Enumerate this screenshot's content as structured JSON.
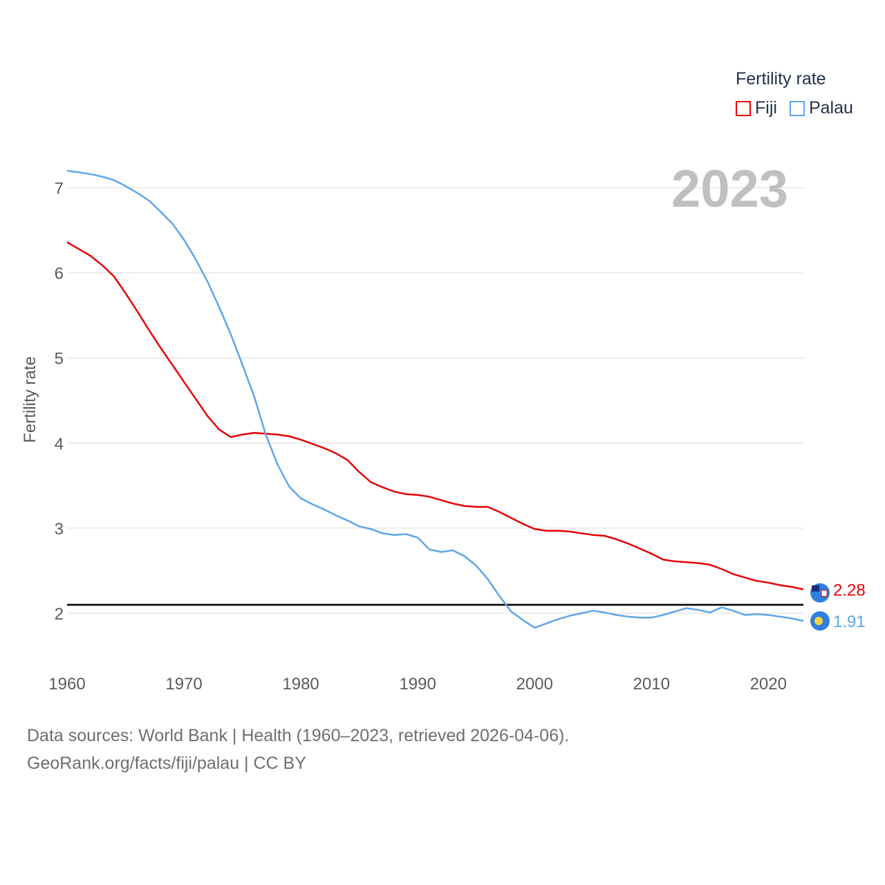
{
  "legend": {
    "title": "Fertility rate",
    "items": [
      {
        "label": "Fiji",
        "color": "#e60000"
      },
      {
        "label": "Palau",
        "color": "#5ea5e8"
      }
    ]
  },
  "footer": {
    "line1": "Data sources: World Bank | Health (1960–2023, retrieved 2026-04-06).",
    "line2": "GeoRank.org/facts/fiji/palau | CC BY"
  },
  "chart_data": {
    "type": "line",
    "ylabel": "Fertility rate",
    "year_label": "2023",
    "xlim": [
      1960,
      2023
    ],
    "ylim": [
      1.5,
      7.2
    ],
    "x_ticks": [
      1960,
      1970,
      1980,
      1990,
      2000,
      2010,
      2020
    ],
    "y_ticks": [
      2,
      3,
      4,
      5,
      6,
      7
    ],
    "reference_line": 2.1,
    "x": [
      1960,
      1961,
      1962,
      1963,
      1964,
      1965,
      1966,
      1967,
      1968,
      1969,
      1970,
      1971,
      1972,
      1973,
      1974,
      1975,
      1976,
      1977,
      1978,
      1979,
      1980,
      1981,
      1982,
      1983,
      1984,
      1985,
      1986,
      1987,
      1988,
      1989,
      1990,
      1991,
      1992,
      1993,
      1994,
      1995,
      1996,
      1997,
      1998,
      1999,
      2000,
      2001,
      2002,
      2003,
      2004,
      2005,
      2006,
      2007,
      2008,
      2009,
      2010,
      2011,
      2012,
      2013,
      2014,
      2015,
      2016,
      2017,
      2018,
      2019,
      2020,
      2021,
      2022,
      2023
    ],
    "series": [
      {
        "name": "Fiji",
        "color": "#e60000",
        "end_label": "2.28",
        "values": [
          6.36,
          6.28,
          6.2,
          6.09,
          5.96,
          5.76,
          5.55,
          5.33,
          5.12,
          4.92,
          4.72,
          4.52,
          4.32,
          4.16,
          4.07,
          4.1,
          4.12,
          4.11,
          4.1,
          4.08,
          4.04,
          3.99,
          3.94,
          3.88,
          3.8,
          3.66,
          3.54,
          3.48,
          3.43,
          3.4,
          3.39,
          3.37,
          3.33,
          3.29,
          3.26,
          3.25,
          3.25,
          3.19,
          3.12,
          3.05,
          2.99,
          2.97,
          2.97,
          2.96,
          2.94,
          2.92,
          2.91,
          2.87,
          2.82,
          2.76,
          2.7,
          2.63,
          2.61,
          2.6,
          2.59,
          2.57,
          2.52,
          2.46,
          2.42,
          2.38,
          2.36,
          2.33,
          2.31,
          2.28
        ]
      },
      {
        "name": "Palau",
        "color": "#5ea5e8",
        "end_label": "1.91",
        "values": [
          7.2,
          7.18,
          7.16,
          7.13,
          7.09,
          7.02,
          6.94,
          6.85,
          6.72,
          6.58,
          6.39,
          6.16,
          5.9,
          5.6,
          5.28,
          4.92,
          4.55,
          4.1,
          3.75,
          3.49,
          3.35,
          3.28,
          3.22,
          3.15,
          3.09,
          3.02,
          2.99,
          2.94,
          2.92,
          2.93,
          2.89,
          2.75,
          2.72,
          2.74,
          2.67,
          2.56,
          2.4,
          2.2,
          2.02,
          1.92,
          1.83,
          1.88,
          1.93,
          1.97,
          2.0,
          2.03,
          2.01,
          1.98,
          1.96,
          1.95,
          1.95,
          1.98,
          2.02,
          2.06,
          2.04,
          2.01,
          2.07,
          2.03,
          1.98,
          1.99,
          1.98,
          1.96,
          1.94,
          1.91
        ]
      }
    ]
  }
}
